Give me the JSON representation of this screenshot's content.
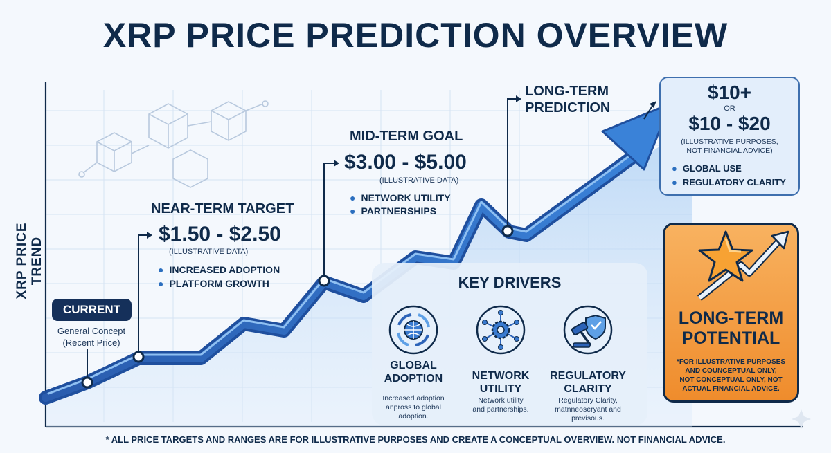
{
  "title": "XRP PRICE PREDICTION OVERVIEW",
  "y_axis_label": "XRP PRICE TREND",
  "current": {
    "badge": "CURRENT",
    "line1": "General Concept",
    "line2": "(Recent Price)"
  },
  "near_term": {
    "heading": "NEAR-TERM TARGET",
    "range": "$1.50 - $2.50",
    "note": "(ILLUSTRATIVE DATA)",
    "bullets": [
      "INCREASED ADOPTION",
      "PLATFORM GROWTH"
    ]
  },
  "mid_term": {
    "heading": "MID-TERM GOAL",
    "range": "$3.00 - $5.00",
    "note": "(ILLUSTRATIVE DATA)",
    "bullets": [
      "NETWORK UTILITY",
      "PARTNERSHIPS"
    ]
  },
  "long_term": {
    "heading_line1": "LONG-TERM",
    "heading_line2": "PREDICTION",
    "value1": "$10+",
    "or": "OR",
    "value2": "$10 - $20",
    "note_line1": "(ILLUSTRATIVE PURPOSES,",
    "note_line2": "NOT FINANCIAL ADVICE)",
    "bullets": [
      "GLOBAL USE",
      "REGULATORY CLARITY"
    ]
  },
  "key_drivers": {
    "title": "KEY DRIVERS",
    "items": [
      {
        "icon": "globe-arrows-icon",
        "name1": "GLOBAL",
        "name2": "ADOPTION",
        "desc1": "Increased adoption",
        "desc2": "anpross to global",
        "desc3": "adoption."
      },
      {
        "icon": "network-gear-icon",
        "name1": "NETWORK",
        "name2": "UTILITY",
        "desc1": "Network utility",
        "desc2": "and partnerships.",
        "desc3": ""
      },
      {
        "icon": "gavel-shield-icon",
        "name1": "REGULATORY",
        "name2": "CLARITY",
        "desc1": "Regulatory Clarity,",
        "desc2": "matnneoseryant and",
        "desc3": "previsous."
      }
    ]
  },
  "potential": {
    "icon": "star-arrow-icon",
    "title_line1": "LONG-TERM",
    "title_line2": "POTENTIAL",
    "note1": "*FOR ILLUSTRATIVE PURPOSES",
    "note2": "AND COUNCEPTUAL ONLY,",
    "note3": "NOT CONCEPTUAL ONLY, NOT",
    "note4": "ACTUAL FINANCIAL ADVICE."
  },
  "footnote": "* ALL PRICE TARGETS AND RANGES ARE FOR ILLUSTRATIVE PURPOSES AND CREATE A CONCEPTUAL OVERVIEW. NOT FINANCIAL ADVICE.",
  "colors": {
    "navy": "#0f2a4a",
    "trend_blue": "#2c63b8",
    "trend_light": "#5ea0e6",
    "panel": "#e3eefb",
    "orange": "#f29a3a"
  }
}
